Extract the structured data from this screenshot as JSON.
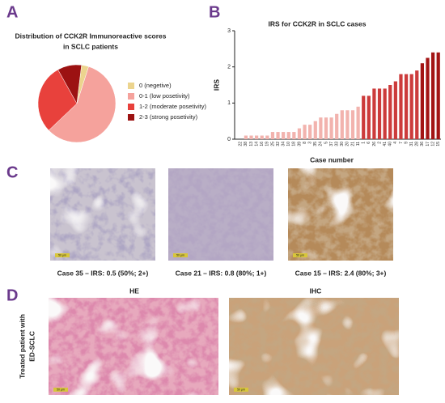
{
  "panel_letters": [
    "A",
    "B",
    "C",
    "D"
  ],
  "chart_data": [
    {
      "type": "pie",
      "title": [
        "Distribution of CCK2R Immunoreactive scores",
        "in SCLC patients"
      ],
      "categories": [
        "0 (negetive)",
        "0-1 (low posetivity)",
        "1-2 (moderate posetivity)",
        "2-3 (strong posetivity)"
      ],
      "values": [
        3,
        58,
        29,
        10
      ],
      "colors": [
        "#ecd48e",
        "#f5a29c",
        "#e8413c",
        "#9c1212"
      ]
    },
    {
      "type": "bar",
      "title": "IRS for CCK2R in SCLC cases",
      "ylabel": "IRS",
      "xlabel": "Case number",
      "categories": [
        "22",
        "38",
        "13",
        "14",
        "16",
        "19",
        "25",
        "32",
        "34",
        "10",
        "18",
        "39",
        "8",
        "3",
        "35",
        "24",
        "5",
        "37",
        "33",
        "30",
        "20",
        "21",
        "11",
        "1",
        "6",
        "26",
        "2",
        "41",
        "40",
        "4",
        "7",
        "9",
        "31",
        "28",
        "36",
        "17",
        "12",
        "15"
      ],
      "values": [
        0,
        0.1,
        0.1,
        0.1,
        0.1,
        0.1,
        0.2,
        0.2,
        0.2,
        0.2,
        0.2,
        0.3,
        0.4,
        0.4,
        0.5,
        0.6,
        0.6,
        0.6,
        0.7,
        0.8,
        0.8,
        0.8,
        0.9,
        1.2,
        1.2,
        1.4,
        1.4,
        1.4,
        1.5,
        1.6,
        1.8,
        1.8,
        1.8,
        1.9,
        2.1,
        2.25,
        2.4,
        2.4
      ],
      "colors": [
        "#f2b3ae",
        "#f2b3ae",
        "#f2b3ae",
        "#f2b3ae",
        "#f2b3ae",
        "#f2b3ae",
        "#f2b3ae",
        "#f2b3ae",
        "#f2b3ae",
        "#f2b3ae",
        "#f2b3ae",
        "#f2b3ae",
        "#f2b3ae",
        "#f2b3ae",
        "#f2b3ae",
        "#f2b3ae",
        "#f2b3ae",
        "#f2b3ae",
        "#f2b3ae",
        "#f2b3ae",
        "#f2b3ae",
        "#f2b3ae",
        "#f2b3ae",
        "#cc3b3b",
        "#cc3b3b",
        "#cc3b3b",
        "#cc3b3b",
        "#cc3b3b",
        "#cc3b3b",
        "#cc3b3b",
        "#cc3b3b",
        "#cc3b3b",
        "#cc3b3b",
        "#cc3b3b",
        "#a31515",
        "#a31515",
        "#a31515",
        "#a31515"
      ],
      "ylim": [
        0,
        3
      ],
      "yticks": [
        0,
        1,
        2,
        3
      ],
      "grid": false
    }
  ],
  "panel_c": {
    "captions": [
      "Case 35 – IRS: 0.5 (50%; 2+)",
      "Case 21 – IRS: 0.8 (80%; 1+)",
      "Case 15 – IRS: 2.4 (80%; 3+)"
    ],
    "scale_bar": "50 µm"
  },
  "panel_d": {
    "columns": [
      "HE",
      "IHC"
    ],
    "row_label": [
      "Treated patient with",
      "ED-SCLC"
    ]
  }
}
